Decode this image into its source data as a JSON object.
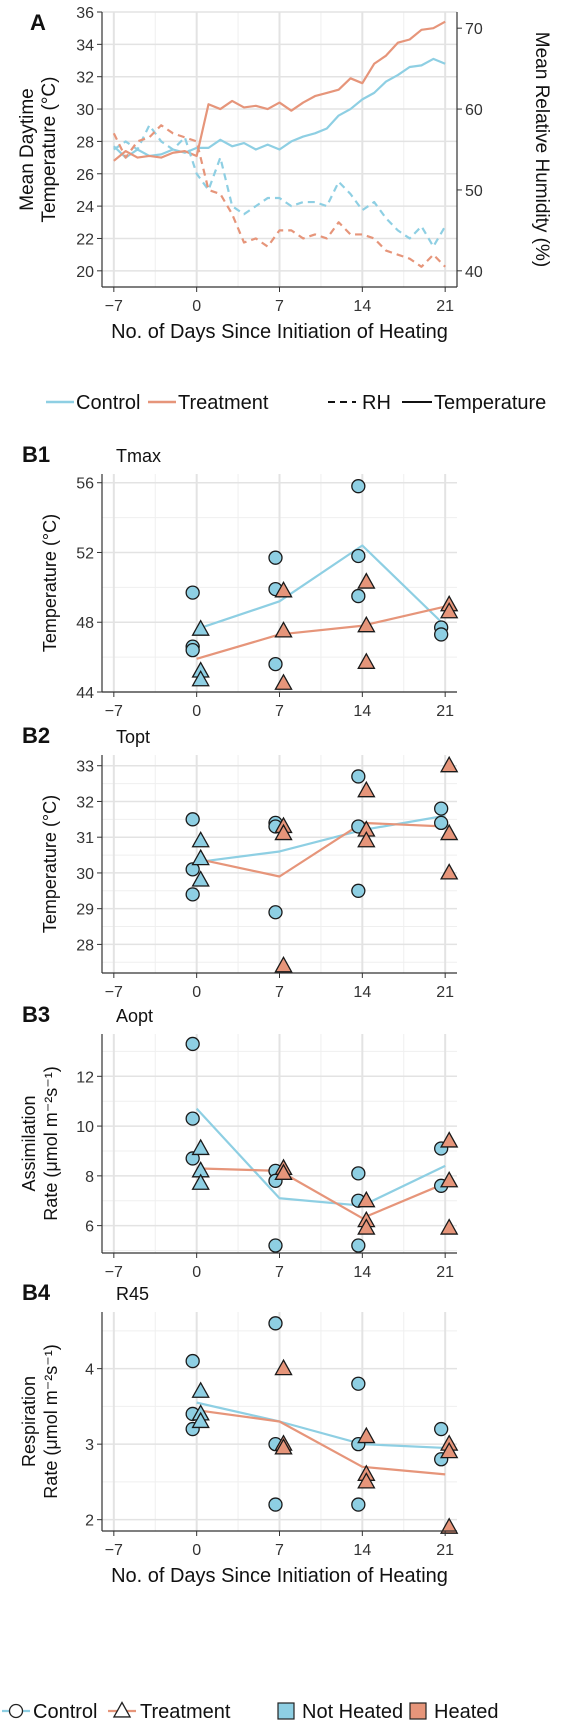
{
  "colors": {
    "control": "#8ecfe3",
    "treatment": "#e6957a",
    "grid": "#e3e3e3",
    "axis": "#333333",
    "marker_stroke": "#1a1a1a"
  },
  "panel_a": {
    "letter": "A",
    "ylabel_left": [
      "Mean Daytime",
      "Temperature (°C)"
    ],
    "ylabel_right": "Mean Relative Humidity (%)",
    "xlabel": "No. of Days Since Initiation of Heating"
  },
  "legend_a": {
    "control": "Control",
    "treatment": "Treatment",
    "rh": "RH",
    "temperature": "Temperature"
  },
  "panels_b": [
    {
      "letter": "B1",
      "name": "Tmax",
      "ylabel": [
        "Temperature (°C)"
      ]
    },
    {
      "letter": "B2",
      "name": "Topt",
      "ylabel": [
        "Temperature (°C)"
      ]
    },
    {
      "letter": "B3",
      "name": "Aopt",
      "ylabel": [
        "Assimilation",
        "Rate (μmol m⁻²s⁻¹)"
      ]
    },
    {
      "letter": "B4",
      "name": "R45",
      "ylabel": [
        "Respiration",
        "Rate (μmol m⁻²s⁻¹)"
      ]
    }
  ],
  "xlabel_bottom": "No. of Days Since Initiation of Heating",
  "legend_b": {
    "control": "Control",
    "treatment": "Treatment",
    "not_heated": "Not Heated",
    "heated": "Heated"
  },
  "chart_data": [
    {
      "type": "line",
      "title": "",
      "xlabel": "No. of Days Since Initiation of Heating",
      "ylabel": "Mean Daytime Temperature (°C)",
      "ylabel_right": "Mean Relative Humidity (%)",
      "xlim": [
        -8,
        22
      ],
      "ylim": [
        19,
        36
      ],
      "ylim_right": [
        38,
        72
      ],
      "xticks": [
        -7,
        0,
        7,
        14,
        21
      ],
      "yticks": [
        20,
        22,
        24,
        26,
        28,
        30,
        32,
        34,
        36
      ],
      "yticks_right": [
        40,
        50,
        60,
        70
      ],
      "x": [
        -7,
        -6,
        -5,
        -4,
        -3,
        -2,
        -1,
        0,
        1,
        2,
        3,
        4,
        5,
        6,
        7,
        8,
        9,
        10,
        11,
        12,
        13,
        14,
        15,
        16,
        17,
        18,
        19,
        20,
        21
      ],
      "series": [
        {
          "name": "Control",
          "variable": "Temperature",
          "axis": "left",
          "values": [
            27.7,
            27.0,
            27.5,
            27.1,
            27.2,
            27.5,
            27.3,
            27.6,
            27.6,
            28.1,
            27.7,
            27.9,
            27.5,
            27.8,
            27.5,
            28.0,
            28.3,
            28.5,
            28.8,
            29.6,
            30.0,
            30.6,
            31.0,
            31.7,
            32.1,
            32.6,
            32.7,
            33.1,
            32.8
          ]
        },
        {
          "name": "Treatment",
          "variable": "Temperature",
          "axis": "left",
          "values": [
            26.8,
            27.4,
            27.0,
            27.1,
            27.0,
            27.3,
            27.4,
            27.1,
            30.3,
            30.0,
            30.5,
            30.1,
            30.2,
            30.0,
            30.4,
            29.9,
            30.4,
            30.8,
            31.0,
            31.2,
            31.9,
            31.6,
            32.8,
            33.3,
            34.1,
            34.3,
            34.9,
            35.0,
            35.4
          ]
        },
        {
          "name": "Control",
          "variable": "RH",
          "axis": "right",
          "values": [
            55.0,
            56.0,
            55.0,
            58.0,
            56.0,
            55.0,
            56.5,
            52.0,
            50.0,
            54.0,
            48.0,
            47.0,
            48.0,
            49.0,
            49.0,
            48.0,
            48.5,
            48.5,
            48.0,
            51.0,
            49.5,
            47.5,
            48.5,
            46.5,
            45.0,
            44.0,
            45.5,
            43.0,
            45.5
          ]
        },
        {
          "name": "Treatment",
          "variable": "RH",
          "axis": "right",
          "values": [
            57.0,
            54.0,
            56.0,
            56.5,
            58.0,
            57.0,
            56.5,
            56.0,
            50.0,
            49.5,
            47.0,
            43.5,
            44.0,
            43.0,
            45.0,
            45.0,
            44.0,
            44.5,
            44.0,
            46.0,
            44.5,
            44.5,
            44.0,
            42.5,
            42.0,
            41.5,
            40.5,
            42.0,
            40.5
          ]
        }
      ]
    },
    {
      "type": "scatter",
      "title": "Tmax",
      "ylabel": "Temperature (°C)",
      "xlim": [
        -8,
        22
      ],
      "ylim": [
        44,
        56.5
      ],
      "xticks": [
        -7,
        0,
        7,
        14,
        21
      ],
      "yticks": [
        44,
        48,
        52,
        56
      ],
      "series": [
        {
          "name": "Control",
          "points": [
            [
              0,
              49.7,
              "Not Heated"
            ],
            [
              0,
              46.6,
              "Not Heated"
            ],
            [
              0,
              46.4,
              "Not Heated"
            ],
            [
              7,
              51.7,
              "Not Heated"
            ],
            [
              7,
              49.9,
              "Not Heated"
            ],
            [
              7,
              45.6,
              "Not Heated"
            ],
            [
              14,
              55.8,
              "Not Heated"
            ],
            [
              14,
              51.8,
              "Not Heated"
            ],
            [
              14,
              49.5,
              "Not Heated"
            ],
            [
              21,
              47.7,
              "Not Heated"
            ],
            [
              21,
              47.3,
              "Not Heated"
            ]
          ],
          "mean": [
            [
              0,
              47.6
            ],
            [
              7,
              49.2
            ],
            [
              14,
              52.4
            ],
            [
              21,
              47.8
            ]
          ]
        },
        {
          "name": "Treatment",
          "points": [
            [
              0,
              47.6,
              "Not Heated"
            ],
            [
              0,
              45.2,
              "Not Heated"
            ],
            [
              0,
              44.7,
              "Not Heated"
            ],
            [
              7,
              49.8,
              "Heated"
            ],
            [
              7,
              47.5,
              "Heated"
            ],
            [
              7,
              44.5,
              "Heated"
            ],
            [
              14,
              50.3,
              "Heated"
            ],
            [
              14,
              47.8,
              "Heated"
            ],
            [
              14,
              45.7,
              "Heated"
            ],
            [
              21,
              49.0,
              "Heated"
            ],
            [
              21,
              48.6,
              "Heated"
            ]
          ],
          "mean": [
            [
              0,
              45.9
            ],
            [
              7,
              47.3
            ],
            [
              14,
              47.8
            ],
            [
              21,
              48.9
            ]
          ]
        }
      ]
    },
    {
      "type": "scatter",
      "title": "Topt",
      "ylabel": "Temperature (°C)",
      "xlim": [
        -8,
        22
      ],
      "ylim": [
        27.2,
        33.3
      ],
      "xticks": [
        -7,
        0,
        7,
        14,
        21
      ],
      "yticks": [
        28,
        29,
        30,
        31,
        32,
        33
      ],
      "series": [
        {
          "name": "Control",
          "points": [
            [
              0,
              31.5,
              "Not Heated"
            ],
            [
              0,
              30.1,
              "Not Heated"
            ],
            [
              0,
              29.4,
              "Not Heated"
            ],
            [
              7,
              31.4,
              "Not Heated"
            ],
            [
              7,
              31.3,
              "Not Heated"
            ],
            [
              7,
              28.9,
              "Not Heated"
            ],
            [
              14,
              32.7,
              "Not Heated"
            ],
            [
              14,
              31.3,
              "Not Heated"
            ],
            [
              14,
              29.5,
              "Not Heated"
            ],
            [
              21,
              31.8,
              "Not Heated"
            ],
            [
              21,
              31.4,
              "Not Heated"
            ]
          ],
          "mean": [
            [
              0,
              30.3
            ],
            [
              7,
              30.6
            ],
            [
              14,
              31.2
            ],
            [
              21,
              31.6
            ]
          ]
        },
        {
          "name": "Treatment",
          "points": [
            [
              0,
              30.9,
              "Not Heated"
            ],
            [
              0,
              30.4,
              "Not Heated"
            ],
            [
              0,
              29.8,
              "Not Heated"
            ],
            [
              7,
              31.3,
              "Heated"
            ],
            [
              7,
              31.1,
              "Heated"
            ],
            [
              7,
              27.4,
              "Heated"
            ],
            [
              14,
              32.3,
              "Heated"
            ],
            [
              14,
              31.2,
              "Heated"
            ],
            [
              14,
              30.9,
              "Heated"
            ],
            [
              21,
              33.0,
              "Heated"
            ],
            [
              21,
              31.1,
              "Heated"
            ],
            [
              21,
              30.0,
              "Heated"
            ]
          ],
          "mean": [
            [
              0,
              30.4
            ],
            [
              7,
              29.9
            ],
            [
              14,
              31.4
            ],
            [
              21,
              31.3
            ]
          ]
        }
      ]
    },
    {
      "type": "scatter",
      "title": "Aopt",
      "ylabel": "Assimilation Rate (μmol m⁻²s⁻¹)",
      "xlim": [
        -8,
        22
      ],
      "ylim": [
        4.9,
        13.7
      ],
      "xticks": [
        -7,
        0,
        7,
        14,
        21
      ],
      "yticks": [
        6,
        8,
        10,
        12
      ],
      "series": [
        {
          "name": "Control",
          "points": [
            [
              0,
              13.3,
              "Not Heated"
            ],
            [
              0,
              10.3,
              "Not Heated"
            ],
            [
              0,
              8.7,
              "Not Heated"
            ],
            [
              7,
              8.2,
              "Not Heated"
            ],
            [
              7,
              7.8,
              "Not Heated"
            ],
            [
              7,
              5.2,
              "Not Heated"
            ],
            [
              14,
              8.1,
              "Not Heated"
            ],
            [
              14,
              7.0,
              "Not Heated"
            ],
            [
              14,
              5.2,
              "Not Heated"
            ],
            [
              21,
              9.1,
              "Not Heated"
            ],
            [
              21,
              7.6,
              "Not Heated"
            ]
          ],
          "mean": [
            [
              0,
              10.7
            ],
            [
              7,
              7.1
            ],
            [
              14,
              6.8
            ],
            [
              21,
              8.4
            ]
          ]
        },
        {
          "name": "Treatment",
          "points": [
            [
              0,
              9.1,
              "Not Heated"
            ],
            [
              0,
              8.2,
              "Not Heated"
            ],
            [
              0,
              7.7,
              "Not Heated"
            ],
            [
              7,
              8.3,
              "Heated"
            ],
            [
              7,
              8.1,
              "Heated"
            ],
            [
              14,
              7.0,
              "Heated"
            ],
            [
              14,
              6.2,
              "Heated"
            ],
            [
              14,
              5.9,
              "Heated"
            ],
            [
              21,
              9.4,
              "Heated"
            ],
            [
              21,
              7.8,
              "Heated"
            ],
            [
              21,
              5.9,
              "Heated"
            ]
          ],
          "mean": [
            [
              0,
              8.3
            ],
            [
              7,
              8.2
            ],
            [
              14,
              6.3
            ],
            [
              21,
              7.7
            ]
          ]
        }
      ]
    },
    {
      "type": "scatter",
      "title": "R45",
      "ylabel": "Respiration Rate (μmol m⁻²s⁻¹)",
      "xlabel": "No. of Days Since Initiation of Heating",
      "xlim": [
        -8,
        22
      ],
      "ylim": [
        1.85,
        4.75
      ],
      "xticks": [
        -7,
        0,
        7,
        14,
        21
      ],
      "yticks": [
        2,
        3,
        4
      ],
      "series": [
        {
          "name": "Control",
          "points": [
            [
              0,
              4.1,
              "Not Heated"
            ],
            [
              0,
              3.4,
              "Not Heated"
            ],
            [
              0,
              3.2,
              "Not Heated"
            ],
            [
              7,
              4.6,
              "Not Heated"
            ],
            [
              7,
              3.0,
              "Not Heated"
            ],
            [
              7,
              2.2,
              "Not Heated"
            ],
            [
              14,
              3.8,
              "Not Heated"
            ],
            [
              14,
              3.0,
              "Not Heated"
            ],
            [
              14,
              2.2,
              "Not Heated"
            ],
            [
              21,
              3.2,
              "Not Heated"
            ],
            [
              21,
              2.8,
              "Not Heated"
            ]
          ],
          "mean": [
            [
              0,
              3.55
            ],
            [
              7,
              3.3
            ],
            [
              14,
              3.0
            ],
            [
              21,
              2.95
            ]
          ]
        },
        {
          "name": "Treatment",
          "points": [
            [
              0,
              3.7,
              "Not Heated"
            ],
            [
              0,
              3.4,
              "Not Heated"
            ],
            [
              0,
              3.3,
              "Not Heated"
            ],
            [
              7,
              4.0,
              "Heated"
            ],
            [
              7,
              3.0,
              "Heated"
            ],
            [
              7,
              2.95,
              "Heated"
            ],
            [
              14,
              3.1,
              "Heated"
            ],
            [
              14,
              2.6,
              "Heated"
            ],
            [
              14,
              2.5,
              "Heated"
            ],
            [
              21,
              3.0,
              "Heated"
            ],
            [
              21,
              2.9,
              "Heated"
            ],
            [
              21,
              1.9,
              "Heated"
            ]
          ],
          "mean": [
            [
              0,
              3.45
            ],
            [
              7,
              3.3
            ],
            [
              14,
              2.7
            ],
            [
              21,
              2.6
            ]
          ]
        }
      ]
    }
  ]
}
